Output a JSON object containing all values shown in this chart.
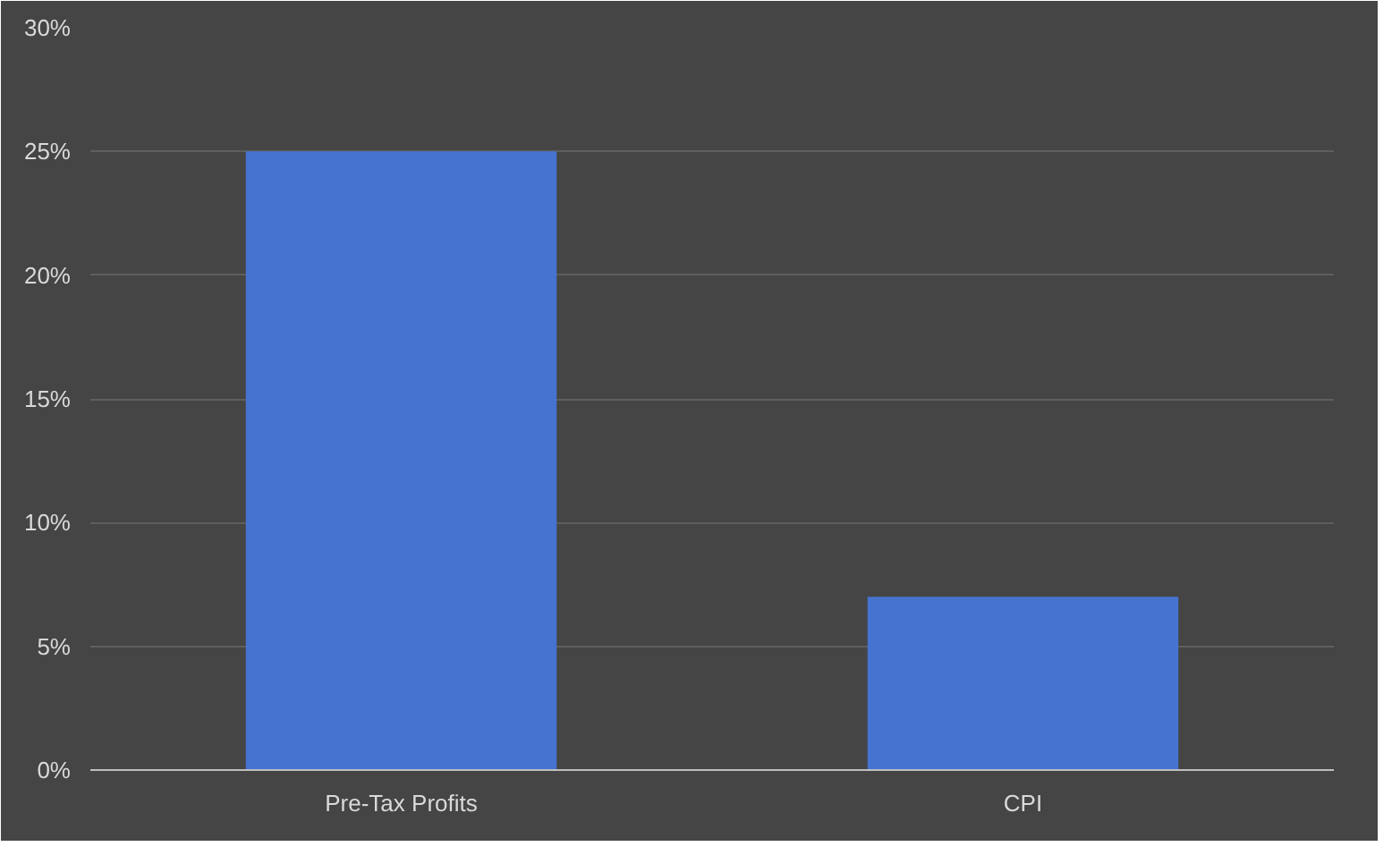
{
  "chart_data": {
    "type": "bar",
    "categories": [
      "Pre-Tax Profits",
      "CPI"
    ],
    "values": [
      25,
      7
    ],
    "color": "#4673cf",
    "ylim": [
      0,
      30
    ],
    "yticks": [
      {
        "value": 0,
        "label": "0%"
      },
      {
        "value": 5,
        "label": "5%"
      },
      {
        "value": 10,
        "label": "10%"
      },
      {
        "value": 15,
        "label": "15%"
      },
      {
        "value": 20,
        "label": "20%"
      },
      {
        "value": 25,
        "label": "25%"
      },
      {
        "value": 30,
        "label": "30%"
      }
    ],
    "grid": "y"
  }
}
